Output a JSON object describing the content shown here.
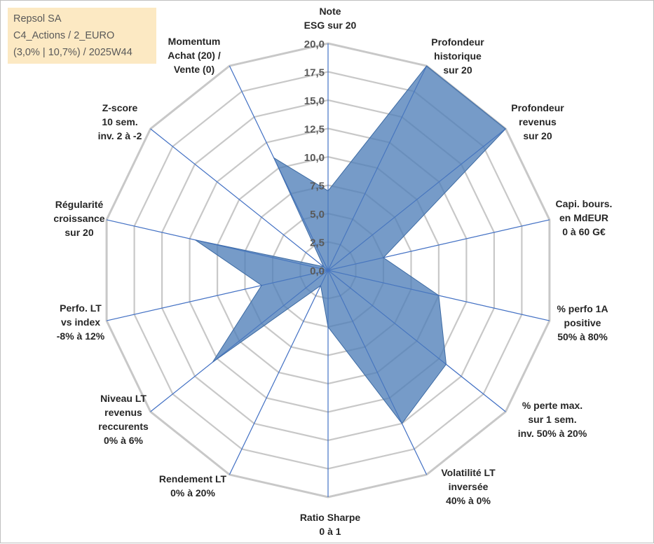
{
  "header": {
    "lines": [
      "Repsol SA",
      "C4_Actions / 2_EURO",
      "(3,0% | 10,7%) / 2025W44"
    ]
  },
  "chart_data": {
    "type": "radar",
    "categories": [
      [
        "Note",
        "ESG sur 20"
      ],
      [
        "Profondeur",
        "historique",
        "sur 20"
      ],
      [
        "Profondeur",
        "revenus",
        "sur 20"
      ],
      [
        "Capi. bours.",
        "en MdEUR",
        "0 à 60 G€"
      ],
      [
        "% perfo 1A",
        "positive",
        "50% à 80%"
      ],
      [
        "% perte max.",
        "sur 1 sem.",
        "inv. 50% à 20%"
      ],
      [
        "Volatilité LT",
        "inversée",
        "40% à 0%"
      ],
      [
        "Ratio Sharpe",
        "0 à 1"
      ],
      [
        "Rendement LT",
        "0% à 20%"
      ],
      [
        "Niveau LT",
        "revenus",
        "reccurents",
        "0% à 6%"
      ],
      [
        "Perfo. LT",
        "vs index",
        "-8% à 12%"
      ],
      [
        "Régularité",
        "croissance",
        "sur 20"
      ],
      [
        "Z-score",
        "10 sem.",
        "inv. 2 à -2"
      ],
      [
        "Momentum",
        "Achat (20) /",
        "Vente (0)"
      ]
    ],
    "values": [
      7.0,
      20.0,
      20.0,
      5.0,
      10.0,
      13.3,
      15.0,
      5.0,
      1.5,
      13.0,
      6.0,
      12.0,
      0.5,
      11.0
    ],
    "ylim": [
      0,
      20
    ],
    "ticks": [
      "0,0",
      "2,5",
      "5,0",
      "7,5",
      "10,0",
      "12,5",
      "15,0",
      "17,5",
      "20,0"
    ],
    "colors": {
      "fill": "#4f7fb8",
      "stroke": "#3c6aa3",
      "grid": "#c8c8c8",
      "spoke": "#4472c4"
    }
  }
}
